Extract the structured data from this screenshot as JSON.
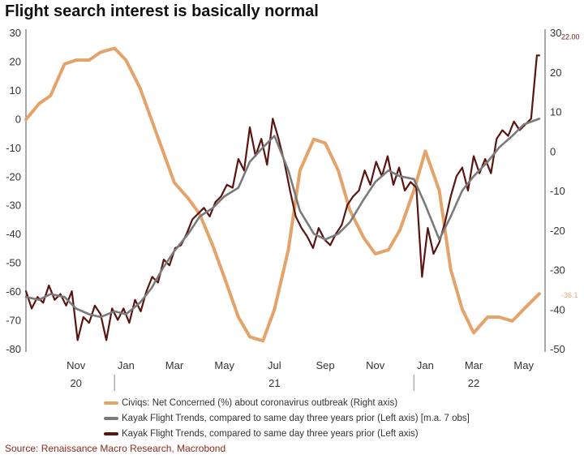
{
  "title": "Flight search interest is basically normal",
  "source": "Source: Renaissance Macro Research, Macrobond",
  "chart_data": {
    "type": "line",
    "title": "Flight search interest is basically normal",
    "y_left": {
      "min": -80,
      "max": 30,
      "ticks": [
        30,
        20,
        10,
        0,
        -10,
        -20,
        -30,
        -40,
        -50,
        -60,
        -70,
        -80
      ]
    },
    "y_right": {
      "min": -50,
      "max": 30,
      "ticks": [
        30,
        20,
        10,
        0,
        -10,
        -20,
        -30,
        -40,
        -50
      ]
    },
    "x_month_labels": [
      "Nov",
      "Jan",
      "Mar",
      "May",
      "Jul",
      "Sep",
      "Nov",
      "Jan",
      "Mar",
      "May"
    ],
    "x_year_labels": [
      "20",
      "21",
      "22"
    ],
    "x_range": [
      "2020-09-15",
      "2022-06-10"
    ],
    "legend_position": "bottom",
    "annotations": [
      {
        "text": "22.00",
        "series": "Kayak Flight Trends, compared to same day three years prior (Left axis)",
        "color": "#6b1a14"
      },
      {
        "text": "-36.1",
        "series": "Civiqs: Net Concerned (%) about coronavirus outbreak (Right axis)",
        "color": "#e0a870"
      }
    ],
    "series": [
      {
        "name": "Kayak Flight Trends, compared to same day three years prior (Left axis)",
        "axis": "left",
        "color": "#5a1510",
        "x": [
          "2020-09-15",
          "2020-09-22",
          "2020-09-29",
          "2020-10-06",
          "2020-10-13",
          "2020-10-20",
          "2020-10-27",
          "2020-11-03",
          "2020-11-10",
          "2020-11-17",
          "2020-11-24",
          "2020-12-01",
          "2020-12-08",
          "2020-12-15",
          "2020-12-22",
          "2020-12-29",
          "2021-01-05",
          "2021-01-12",
          "2021-01-19",
          "2021-01-26",
          "2021-02-02",
          "2021-02-09",
          "2021-02-16",
          "2021-02-23",
          "2021-03-02",
          "2021-03-09",
          "2021-03-16",
          "2021-03-23",
          "2021-03-30",
          "2021-04-06",
          "2021-04-13",
          "2021-04-20",
          "2021-04-27",
          "2021-05-04",
          "2021-05-11",
          "2021-05-18",
          "2021-05-25",
          "2021-06-01",
          "2021-06-08",
          "2021-06-15",
          "2021-06-22",
          "2021-06-29",
          "2021-07-06",
          "2021-07-13",
          "2021-07-20",
          "2021-07-27",
          "2021-08-03",
          "2021-08-10",
          "2021-08-17",
          "2021-08-24",
          "2021-08-31",
          "2021-09-07",
          "2021-09-14",
          "2021-09-21",
          "2021-09-28",
          "2021-10-05",
          "2021-10-12",
          "2021-10-19",
          "2021-10-26",
          "2021-11-02",
          "2021-11-09",
          "2021-11-16",
          "2021-11-23",
          "2021-11-30",
          "2021-12-07",
          "2021-12-14",
          "2021-12-21",
          "2021-12-28",
          "2022-01-04",
          "2022-01-11",
          "2022-01-18",
          "2022-01-25",
          "2022-02-01",
          "2022-02-08",
          "2022-02-15",
          "2022-02-22",
          "2022-03-01",
          "2022-03-08",
          "2022-03-15",
          "2022-03-22",
          "2022-03-29",
          "2022-04-05",
          "2022-04-12",
          "2022-04-19",
          "2022-04-26",
          "2022-05-03",
          "2022-05-10",
          "2022-05-17",
          "2022-05-24",
          "2022-05-31",
          "2022-06-03"
        ],
        "values": [
          -60,
          -66,
          -62,
          -64,
          -58,
          -63,
          -61,
          -65,
          -60,
          -77,
          -69,
          -71,
          -65,
          -68,
          -77,
          -66,
          -70,
          -66,
          -71,
          -63,
          -67,
          -60,
          -55,
          -57,
          -49,
          -51,
          -45,
          -44,
          -40,
          -35,
          -33,
          -31,
          -34,
          -29,
          -27,
          -23,
          -24,
          -14,
          -18,
          -3,
          -13,
          -7,
          -16,
          0,
          -7,
          -15,
          -25,
          -34,
          -38,
          -41,
          -45,
          -38,
          -42,
          -44,
          -40,
          -37,
          -30,
          -27,
          -25,
          -18,
          -23,
          -15,
          -20,
          -13,
          -23,
          -17,
          -25,
          -22,
          -24,
          -55,
          -38,
          -47,
          -43,
          -36,
          -27,
          -20,
          -17,
          -25,
          -13,
          -19,
          -14,
          -19,
          -7,
          -4,
          -6,
          -1,
          -4,
          -2,
          0,
          22,
          22
        ]
      },
      {
        "name": "Kayak Flight Trends, compared to same day three years prior (Left axis) [m.a. 7 obs]",
        "axis": "left",
        "color": "#7a7a7a",
        "x": [
          "2020-09-15",
          "2020-10-01",
          "2020-10-15",
          "2020-11-01",
          "2020-11-15",
          "2020-12-01",
          "2020-12-15",
          "2021-01-01",
          "2021-01-15",
          "2021-02-01",
          "2021-02-15",
          "2021-03-01",
          "2021-03-15",
          "2021-04-01",
          "2021-04-15",
          "2021-05-01",
          "2021-05-15",
          "2021-06-01",
          "2021-06-15",
          "2021-07-01",
          "2021-07-15",
          "2021-08-01",
          "2021-08-15",
          "2021-09-01",
          "2021-09-15",
          "2021-10-01",
          "2021-10-15",
          "2021-11-01",
          "2021-11-15",
          "2021-12-01",
          "2021-12-15",
          "2022-01-01",
          "2022-01-15",
          "2022-02-01",
          "2022-02-15",
          "2022-03-01",
          "2022-03-15",
          "2022-04-01",
          "2022-04-15",
          "2022-05-01",
          "2022-05-15",
          "2022-06-03"
        ],
        "values": [
          -62,
          -63,
          -61,
          -62,
          -66,
          -68,
          -69,
          -67,
          -68,
          -64,
          -59,
          -52,
          -46,
          -40,
          -34,
          -31,
          -27,
          -24,
          -15,
          -10,
          -6,
          -18,
          -32,
          -40,
          -42,
          -40,
          -36,
          -28,
          -22,
          -18,
          -20,
          -21,
          -30,
          -42,
          -34,
          -25,
          -20,
          -15,
          -10,
          -6,
          -2,
          0
        ]
      },
      {
        "name": "Civiqs: Net Concerned (%) about coronavirus outbreak (Right axis)",
        "axis": "right",
        "color": "#e4a36a",
        "x": [
          "2020-09-15",
          "2020-10-01",
          "2020-10-15",
          "2020-11-01",
          "2020-11-15",
          "2020-12-01",
          "2020-12-15",
          "2021-01-01",
          "2021-01-15",
          "2021-02-01",
          "2021-02-15",
          "2021-03-01",
          "2021-03-15",
          "2021-04-01",
          "2021-04-15",
          "2021-05-01",
          "2021-05-15",
          "2021-06-01",
          "2021-06-15",
          "2021-07-01",
          "2021-07-15",
          "2021-08-01",
          "2021-08-15",
          "2021-09-01",
          "2021-09-15",
          "2021-10-01",
          "2021-10-15",
          "2021-11-01",
          "2021-11-15",
          "2021-12-01",
          "2021-12-15",
          "2022-01-01",
          "2022-01-15",
          "2022-02-01",
          "2022-02-15",
          "2022-03-01",
          "2022-03-15",
          "2022-04-01",
          "2022-04-15",
          "2022-05-01",
          "2022-05-15",
          "2022-06-03"
        ],
        "values": [
          8,
          12,
          14,
          22,
          23,
          23,
          25,
          26,
          23,
          16,
          8,
          0,
          -8,
          -12,
          -16,
          -24,
          -32,
          -42,
          -47,
          -48,
          -40,
          -25,
          -5,
          3,
          2,
          -5,
          -15,
          -22,
          -26,
          -25,
          -20,
          -10,
          0,
          -10,
          -30,
          -40,
          -46,
          -42,
          -42,
          -43,
          -40,
          -36.1
        ]
      }
    ]
  }
}
